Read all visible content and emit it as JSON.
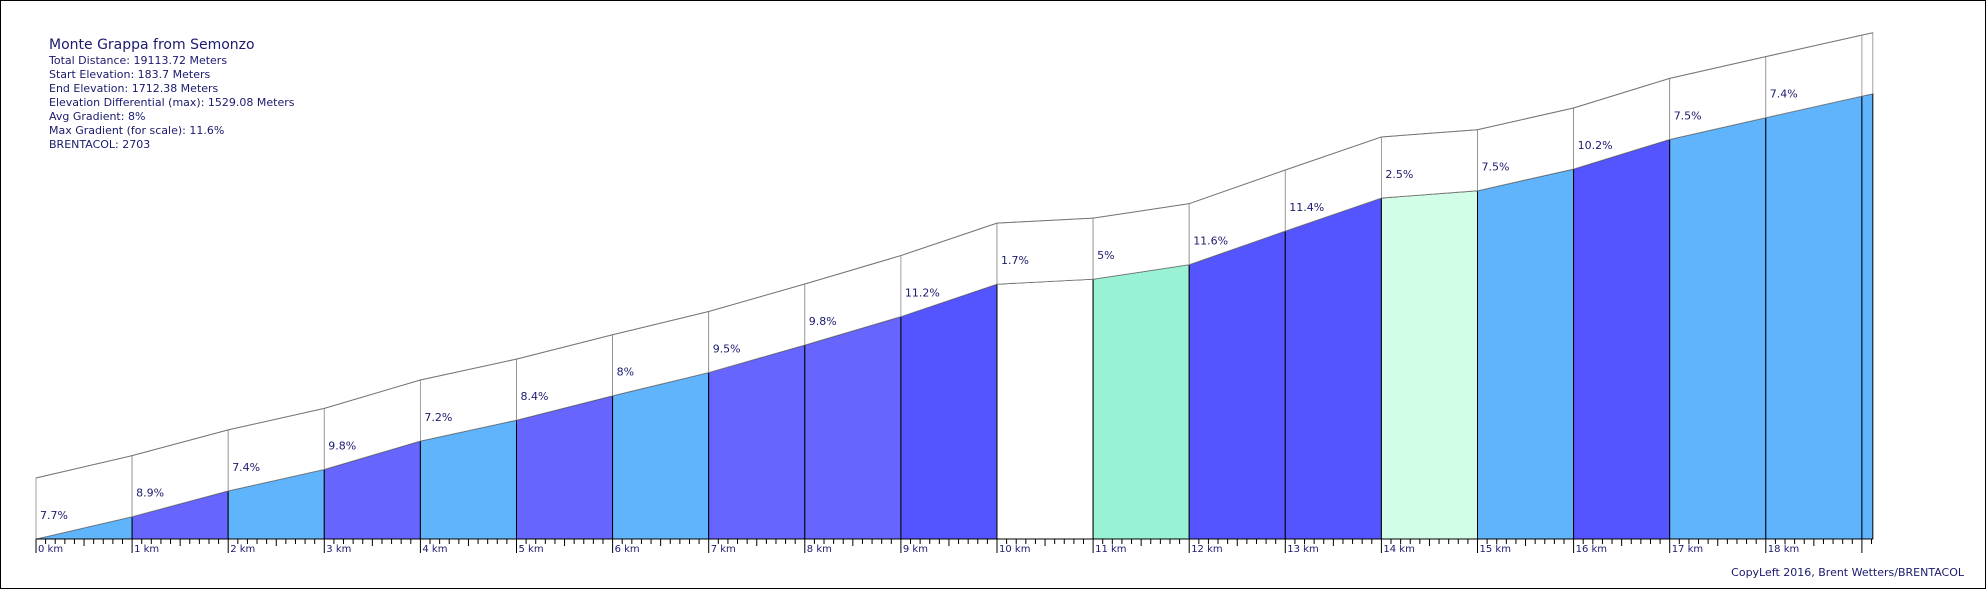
{
  "header": {
    "title": "Monte Grappa from Semonzo",
    "total_distance": "Total Distance: 19113.72 Meters",
    "start_elevation": "Start Elevation: 183.7 Meters",
    "end_elevation": "End Elevation: 1712.38 Meters",
    "elevation_diff": "Elevation Differential (max): 1529.08 Meters",
    "avg_gradient": "Avg Gradient: 8%",
    "max_gradient": "Max Gradient (for scale): 11.6%",
    "brentacol": "BRENTACOL: 2703"
  },
  "footer": {
    "copyleft": "CopyLeft 2016, Brent Wetters/BRENTACOL"
  },
  "chart_data": {
    "type": "area",
    "x_unit": "km",
    "total_km": 19.11372,
    "tick_labels": [
      "0 km",
      "1 km",
      "2 km",
      "3 km",
      "4 km",
      "5 km",
      "6 km",
      "7 km",
      "8 km",
      "9 km",
      "10 km",
      "11 km",
      "12 km",
      "13 km",
      "14 km",
      "15 km",
      "16 km",
      "17 km",
      "18 km"
    ],
    "segments": [
      {
        "label": "7.7%",
        "gradient": 7.7,
        "color": "#60b4fc"
      },
      {
        "label": "8.9%",
        "gradient": 8.9,
        "color": "#6666ff"
      },
      {
        "label": "7.4%",
        "gradient": 7.4,
        "color": "#60b4fc"
      },
      {
        "label": "9.8%",
        "gradient": 9.8,
        "color": "#6666ff"
      },
      {
        "label": "7.2%",
        "gradient": 7.2,
        "color": "#60b4fc"
      },
      {
        "label": "8.4%",
        "gradient": 8.4,
        "color": "#6666ff"
      },
      {
        "label": "8%",
        "gradient": 8.0,
        "color": "#60b4fc"
      },
      {
        "label": "9.5%",
        "gradient": 9.5,
        "color": "#6666ff"
      },
      {
        "label": "9.8%",
        "gradient": 9.8,
        "color": "#6666ff"
      },
      {
        "label": "11.2%",
        "gradient": 11.2,
        "color": "#5555ff"
      },
      {
        "label": "1.7%",
        "gradient": 1.7,
        "color": "#ffffff"
      },
      {
        "label": "5%",
        "gradient": 5.0,
        "color": "#99f2d6"
      },
      {
        "label": "11.6%",
        "gradient": 11.6,
        "color": "#5555ff"
      },
      {
        "label": "11.4%",
        "gradient": 11.4,
        "color": "#5555ff"
      },
      {
        "label": "2.5%",
        "gradient": 2.5,
        "color": "#d2fde6"
      },
      {
        "label": "7.5%",
        "gradient": 7.5,
        "color": "#60b4fc"
      },
      {
        "label": "10.2%",
        "gradient": 10.2,
        "color": "#5555ff"
      },
      {
        "label": "7.5%",
        "gradient": 7.5,
        "color": "#60b4fc"
      },
      {
        "label": "7.4%",
        "gradient": 7.4,
        "color": "#60b4fc"
      },
      {
        "label": "",
        "gradient": 7.4,
        "color": "#60b4fc"
      }
    ]
  }
}
